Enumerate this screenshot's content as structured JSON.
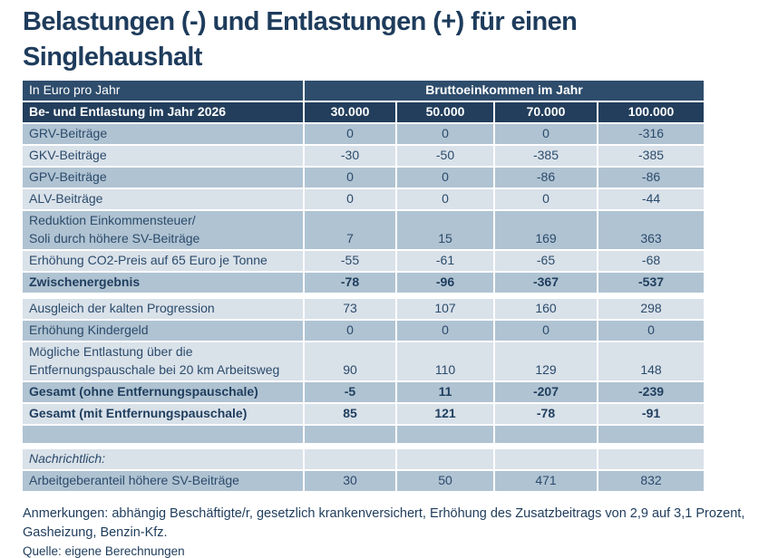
{
  "title": "Belastungen (-) und Entlastungen (+) für einen Singlehaushalt",
  "chart_data": {
    "type": "table",
    "title": "Belastungen (-) und Entlastungen (+) für einen Singlehaushalt",
    "unit_label": "In Euro pro Jahr",
    "column_group_label": "Bruttoeinkommen im Jahr",
    "row_header_label": "Be- und Entlastung im Jahr 2026",
    "columns": [
      "30.000",
      "50.000",
      "70.000",
      "100.000"
    ],
    "rows": [
      {
        "label": "GRV-Beiträge",
        "values": [
          "0",
          "0",
          "0",
          "-316"
        ]
      },
      {
        "label": "GKV-Beiträge",
        "values": [
          "-30",
          "-50",
          "-385",
          "-385"
        ]
      },
      {
        "label": "GPV-Beiträge",
        "values": [
          "0",
          "0",
          "-86",
          "-86"
        ]
      },
      {
        "label": "ALV-Beiträge",
        "values": [
          "0",
          "0",
          "0",
          "-44"
        ]
      },
      {
        "label": "Reduktion Einkommensteuer/\nSoli durch höhere SV-Beiträge",
        "values": [
          "7",
          "15",
          "169",
          "363"
        ],
        "twoline": true
      },
      {
        "label": "Erhöhung CO2-Preis auf 65 Euro je Tonne",
        "values": [
          "-55",
          "-61",
          "-65",
          "-68"
        ]
      },
      {
        "label": "Zwischenergebnis",
        "values": [
          "-78",
          "-96",
          "-367",
          "-537"
        ],
        "bold": true,
        "gap_after": true
      },
      {
        "label": "Ausgleich der kalten Progression",
        "values": [
          "73",
          "107",
          "160",
          "298"
        ]
      },
      {
        "label": "Erhöhung Kindergeld",
        "values": [
          "0",
          "0",
          "0",
          "0"
        ]
      },
      {
        "label": "Mögliche Entlastung über die\nEntfernungspauschale bei 20 km Arbeitsweg",
        "values": [
          "90",
          "110",
          "129",
          "148"
        ],
        "twoline": true
      },
      {
        "label": "Gesamt (ohne Entfernungspauschale)",
        "values": [
          "-5",
          "11",
          "-207",
          "-239"
        ],
        "bold": true
      },
      {
        "label": "Gesamt (mit Entfernungspauschale)",
        "values": [
          "85",
          "121",
          "-78",
          "-91"
        ],
        "bold": true
      },
      {
        "label": "",
        "values": [
          "",
          "",
          "",
          ""
        ],
        "gap_after": true
      },
      {
        "label": "Nachrichtlich:",
        "values": [
          "",
          "",
          "",
          ""
        ],
        "italic": true
      },
      {
        "label": "Arbeitgeberanteil höhere SV-Beiträge",
        "values": [
          "30",
          "50",
          "471",
          "832"
        ]
      }
    ]
  },
  "notes": "Anmerkungen: abhängig Beschäftigte/r, gesetzlich krankenversichert, Erhöhung des Zusatzbeitrags von 2,9 auf 3,1 Prozent, Gasheizung, Benzin-Kfz.",
  "source": "Quelle: eigene Berechnungen",
  "colors": {
    "header_row1": "#2e4d6c",
    "header_row2": "#223e5c",
    "row_dark": "#b0c3d2",
    "row_light": "#d9e1e9",
    "text": "#2b4b6b",
    "title_text": "#1e3c5c"
  }
}
